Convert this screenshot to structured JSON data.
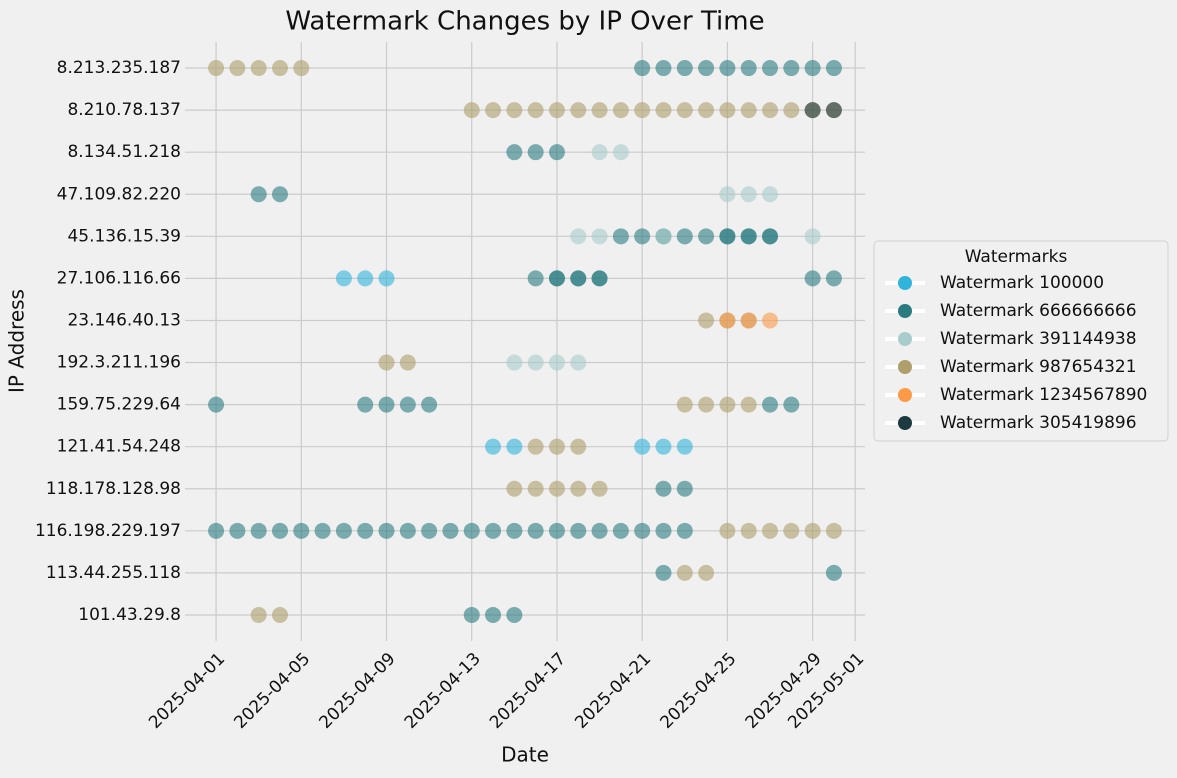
{
  "chart_data": {
    "type": "scatter",
    "title": "Watermark Changes by IP Over Time",
    "x_label": "Date",
    "y_label": "IP Address",
    "categories": [
      "8.213.235.187",
      "8.210.78.137",
      "8.134.51.218",
      "47.109.82.220",
      "45.136.15.39",
      "27.106.116.66",
      "23.146.40.13",
      "192.3.211.196",
      "159.75.229.64",
      "121.41.54.248",
      "118.178.128.98",
      "116.198.229.197",
      "113.44.255.118",
      "101.43.29.8"
    ],
    "xlim": [
      "2025-03-30T13:00Z",
      "2025-05-01T11:00Z"
    ],
    "xticks": [
      "2025-04-01",
      "2025-04-05",
      "2025-04-09",
      "2025-04-13",
      "2025-04-17",
      "2025-04-21",
      "2025-04-25",
      "2025-04-29",
      "2025-05-01"
    ],
    "grid": true,
    "legend_title": "Watermarks",
    "legend_position": "right",
    "alpha": 0.6,
    "series": [
      {
        "name": "Watermark 100000",
        "color": "#30b4dc",
        "x": [
          "2025-04-07",
          "2025-04-08",
          "2025-04-09",
          "2025-04-14",
          "2025-04-15",
          "2025-04-21",
          "2025-04-22",
          "2025-04-23"
        ],
        "y": [
          "27.106.116.66",
          "27.106.116.66",
          "27.106.116.66",
          "121.41.54.248",
          "121.41.54.248",
          "121.41.54.248",
          "121.41.54.248",
          "121.41.54.248"
        ]
      },
      {
        "name": "Watermark 666666666",
        "color": "#2a7b80",
        "x": [
          "2025-04-21",
          "2025-04-22",
          "2025-04-23",
          "2025-04-24",
          "2025-04-25",
          "2025-04-26",
          "2025-04-27",
          "2025-04-28",
          "2025-04-29",
          "2025-04-30",
          "2025-04-15",
          "2025-04-16",
          "2025-04-17",
          "2025-04-03",
          "2025-04-04",
          "2025-04-20",
          "2025-04-21",
          "2025-04-22",
          "2025-04-23",
          "2025-04-24",
          "2025-04-25",
          "2025-04-26",
          "2025-04-27",
          "2025-04-25",
          "2025-04-26",
          "2025-04-27",
          "2025-04-16",
          "2025-04-17",
          "2025-04-18",
          "2025-04-19",
          "2025-04-17",
          "2025-04-18",
          "2025-04-19",
          "2025-04-29",
          "2025-04-30",
          "2025-04-01",
          "2025-04-08",
          "2025-04-09",
          "2025-04-10",
          "2025-04-11",
          "2025-04-27",
          "2025-04-28",
          "2025-04-22",
          "2025-04-23",
          "2025-04-01",
          "2025-04-02",
          "2025-04-03",
          "2025-04-04",
          "2025-04-05",
          "2025-04-06",
          "2025-04-07",
          "2025-04-08",
          "2025-04-09",
          "2025-04-10",
          "2025-04-11",
          "2025-04-12",
          "2025-04-13",
          "2025-04-14",
          "2025-04-15",
          "2025-04-16",
          "2025-04-17",
          "2025-04-18",
          "2025-04-19",
          "2025-04-20",
          "2025-04-21",
          "2025-04-22",
          "2025-04-23",
          "2025-04-22",
          "2025-04-30",
          "2025-04-13",
          "2025-04-14",
          "2025-04-15"
        ],
        "y": [
          "8.213.235.187",
          "8.213.235.187",
          "8.213.235.187",
          "8.213.235.187",
          "8.213.235.187",
          "8.213.235.187",
          "8.213.235.187",
          "8.213.235.187",
          "8.213.235.187",
          "8.213.235.187",
          "8.134.51.218",
          "8.134.51.218",
          "8.134.51.218",
          "47.109.82.220",
          "47.109.82.220",
          "45.136.15.39",
          "45.136.15.39",
          "45.136.15.39",
          "45.136.15.39",
          "45.136.15.39",
          "45.136.15.39",
          "45.136.15.39",
          "45.136.15.39",
          "45.136.15.39",
          "45.136.15.39",
          "45.136.15.39",
          "27.106.116.66",
          "27.106.116.66",
          "27.106.116.66",
          "27.106.116.66",
          "27.106.116.66",
          "27.106.116.66",
          "27.106.116.66",
          "27.106.116.66",
          "27.106.116.66",
          "159.75.229.64",
          "159.75.229.64",
          "159.75.229.64",
          "159.75.229.64",
          "159.75.229.64",
          "159.75.229.64",
          "159.75.229.64",
          "118.178.128.98",
          "118.178.128.98",
          "116.198.229.197",
          "116.198.229.197",
          "116.198.229.197",
          "116.198.229.197",
          "116.198.229.197",
          "116.198.229.197",
          "116.198.229.197",
          "116.198.229.197",
          "116.198.229.197",
          "116.198.229.197",
          "116.198.229.197",
          "116.198.229.197",
          "116.198.229.197",
          "116.198.229.197",
          "116.198.229.197",
          "116.198.229.197",
          "116.198.229.197",
          "116.198.229.197",
          "116.198.229.197",
          "116.198.229.197",
          "116.198.229.197",
          "116.198.229.197",
          "116.198.229.197",
          "113.44.255.118",
          "113.44.255.118",
          "101.43.29.8",
          "101.43.29.8",
          "101.43.29.8"
        ]
      },
      {
        "name": "Watermark 391144938",
        "color": "#a8cccc",
        "x": [
          "2025-04-19",
          "2025-04-20",
          "2025-04-25",
          "2025-04-26",
          "2025-04-27",
          "2025-04-18",
          "2025-04-19",
          "2025-04-22",
          "2025-04-29",
          "2025-04-15",
          "2025-04-16",
          "2025-04-17",
          "2025-04-18"
        ],
        "y": [
          "8.134.51.218",
          "8.134.51.218",
          "47.109.82.220",
          "47.109.82.220",
          "47.109.82.220",
          "45.136.15.39",
          "45.136.15.39",
          "45.136.15.39",
          "45.136.15.39",
          "192.3.211.196",
          "192.3.211.196",
          "192.3.211.196",
          "192.3.211.196"
        ]
      },
      {
        "name": "Watermark 987654321",
        "color": "#ae9f6b",
        "x": [
          "2025-04-01",
          "2025-04-02",
          "2025-04-03",
          "2025-04-04",
          "2025-04-05",
          "2025-04-13",
          "2025-04-14",
          "2025-04-15",
          "2025-04-16",
          "2025-04-17",
          "2025-04-18",
          "2025-04-19",
          "2025-04-20",
          "2025-04-21",
          "2025-04-22",
          "2025-04-23",
          "2025-04-24",
          "2025-04-25",
          "2025-04-26",
          "2025-04-27",
          "2025-04-28",
          "2025-04-29",
          "2025-04-30",
          "2025-04-24",
          "2025-04-25",
          "2025-04-26",
          "2025-04-09",
          "2025-04-10",
          "2025-04-23",
          "2025-04-24",
          "2025-04-25",
          "2025-04-26",
          "2025-04-16",
          "2025-04-17",
          "2025-04-18",
          "2025-04-15",
          "2025-04-16",
          "2025-04-17",
          "2025-04-18",
          "2025-04-19",
          "2025-04-25",
          "2025-04-26",
          "2025-04-27",
          "2025-04-28",
          "2025-04-29",
          "2025-04-30",
          "2025-04-23",
          "2025-04-24",
          "2025-04-03",
          "2025-04-04"
        ],
        "y": [
          "8.213.235.187",
          "8.213.235.187",
          "8.213.235.187",
          "8.213.235.187",
          "8.213.235.187",
          "8.210.78.137",
          "8.210.78.137",
          "8.210.78.137",
          "8.210.78.137",
          "8.210.78.137",
          "8.210.78.137",
          "8.210.78.137",
          "8.210.78.137",
          "8.210.78.137",
          "8.210.78.137",
          "8.210.78.137",
          "8.210.78.137",
          "8.210.78.137",
          "8.210.78.137",
          "8.210.78.137",
          "8.210.78.137",
          "8.210.78.137",
          "8.210.78.137",
          "23.146.40.13",
          "23.146.40.13",
          "23.146.40.13",
          "192.3.211.196",
          "192.3.211.196",
          "159.75.229.64",
          "159.75.229.64",
          "159.75.229.64",
          "159.75.229.64",
          "121.41.54.248",
          "121.41.54.248",
          "121.41.54.248",
          "118.178.128.98",
          "118.178.128.98",
          "118.178.128.98",
          "118.178.128.98",
          "118.178.128.98",
          "116.198.229.197",
          "116.198.229.197",
          "116.198.229.197",
          "116.198.229.197",
          "116.198.229.197",
          "116.198.229.197",
          "113.44.255.118",
          "113.44.255.118",
          "101.43.29.8",
          "101.43.29.8"
        ]
      },
      {
        "name": "Watermark 1234567890",
        "color": "#fc9a48",
        "x": [
          "2025-04-25",
          "2025-04-26",
          "2025-04-27"
        ],
        "y": [
          "23.146.40.13",
          "23.146.40.13",
          "23.146.40.13"
        ]
      },
      {
        "name": "Watermark 305419896",
        "color": "#1c3a40",
        "x": [
          "2025-04-29",
          "2025-04-30"
        ],
        "y": [
          "8.210.78.137",
          "8.210.78.137"
        ]
      }
    ]
  }
}
